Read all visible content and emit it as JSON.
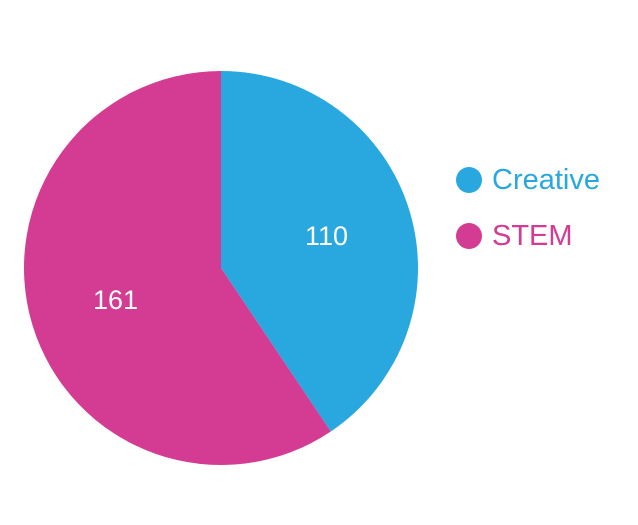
{
  "chart_data": {
    "type": "pie",
    "slices": [
      {
        "label": "Creative",
        "value": 110,
        "color": "#29a8df"
      },
      {
        "label": "STEM",
        "value": 161,
        "color": "#d43b92"
      }
    ],
    "legend": {
      "placement": "right",
      "items": [
        "Creative",
        "STEM"
      ]
    },
    "data_labels": [
      "110",
      "161"
    ],
    "start_angle_deg": 0,
    "direction": "clockwise"
  }
}
